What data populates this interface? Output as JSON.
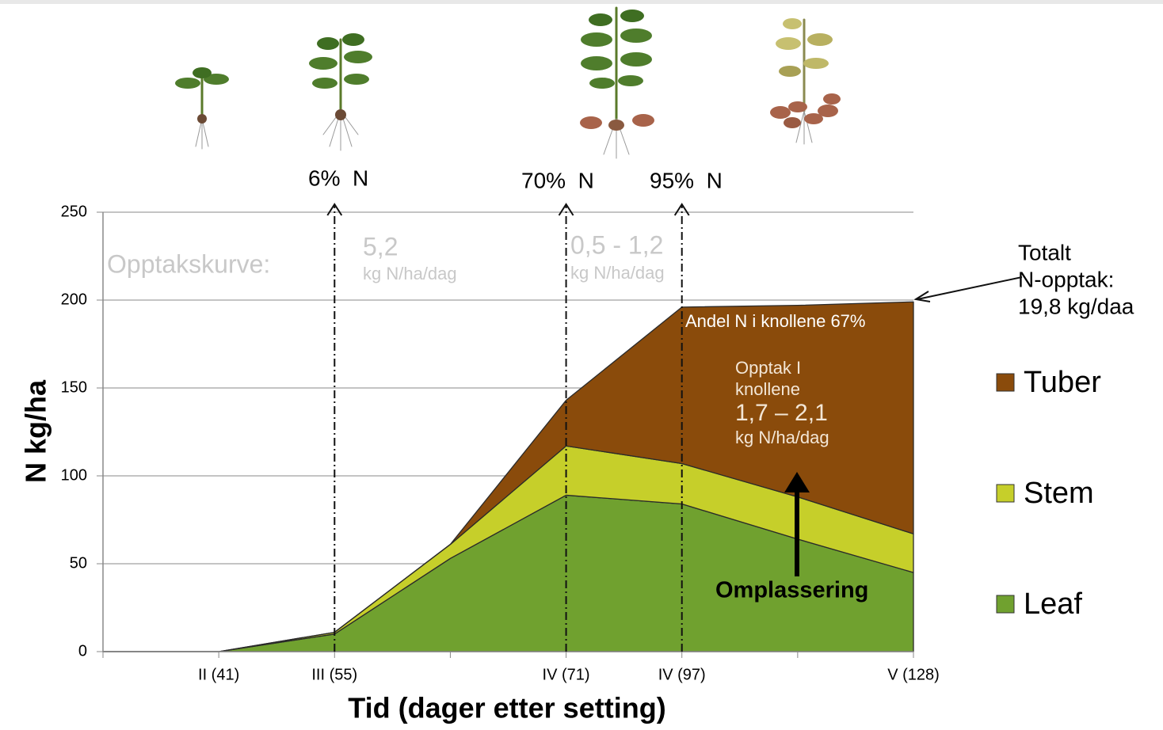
{
  "chart_data": {
    "type": "stacked-area",
    "ylabel": "N kg/ha",
    "xlabel": "Tid (dager etter setting)",
    "categories": [
      null,
      "II (41)",
      "III (55)",
      null,
      "IV (71)",
      "IV (97)",
      null,
      "V (128)"
    ],
    "ylim": [
      0,
      250
    ],
    "yticks": [
      0,
      50,
      100,
      150,
      200,
      250
    ],
    "grid": true,
    "series": [
      {
        "name": "Leaf",
        "color": "#70a12f",
        "values": [
          0,
          0,
          10,
          53,
          89,
          84,
          64,
          45
        ]
      },
      {
        "name": "Stem",
        "color": "#c6cf2a",
        "values": [
          0,
          0,
          1,
          8,
          28,
          23,
          24,
          22
        ]
      },
      {
        "name": "Tuber",
        "color": "#8a4b0b",
        "values": [
          0,
          0,
          0,
          0,
          26,
          89,
          109,
          132
        ]
      }
    ],
    "annotations": [
      "6%  N",
      "70%  N",
      "95%  N",
      "Opptakskurve:",
      "5,2",
      "kg N/ha/dag",
      "0,5 - 1,2",
      "kg N/ha/dag",
      "Totalt",
      "N-opptak:",
      "19,8 kg/daa",
      "Andel N i knollene 67%",
      "Opptak I",
      "knollene",
      "1,7 – 2,1",
      "kg N/ha/dag",
      "Omplassering"
    ]
  }
}
